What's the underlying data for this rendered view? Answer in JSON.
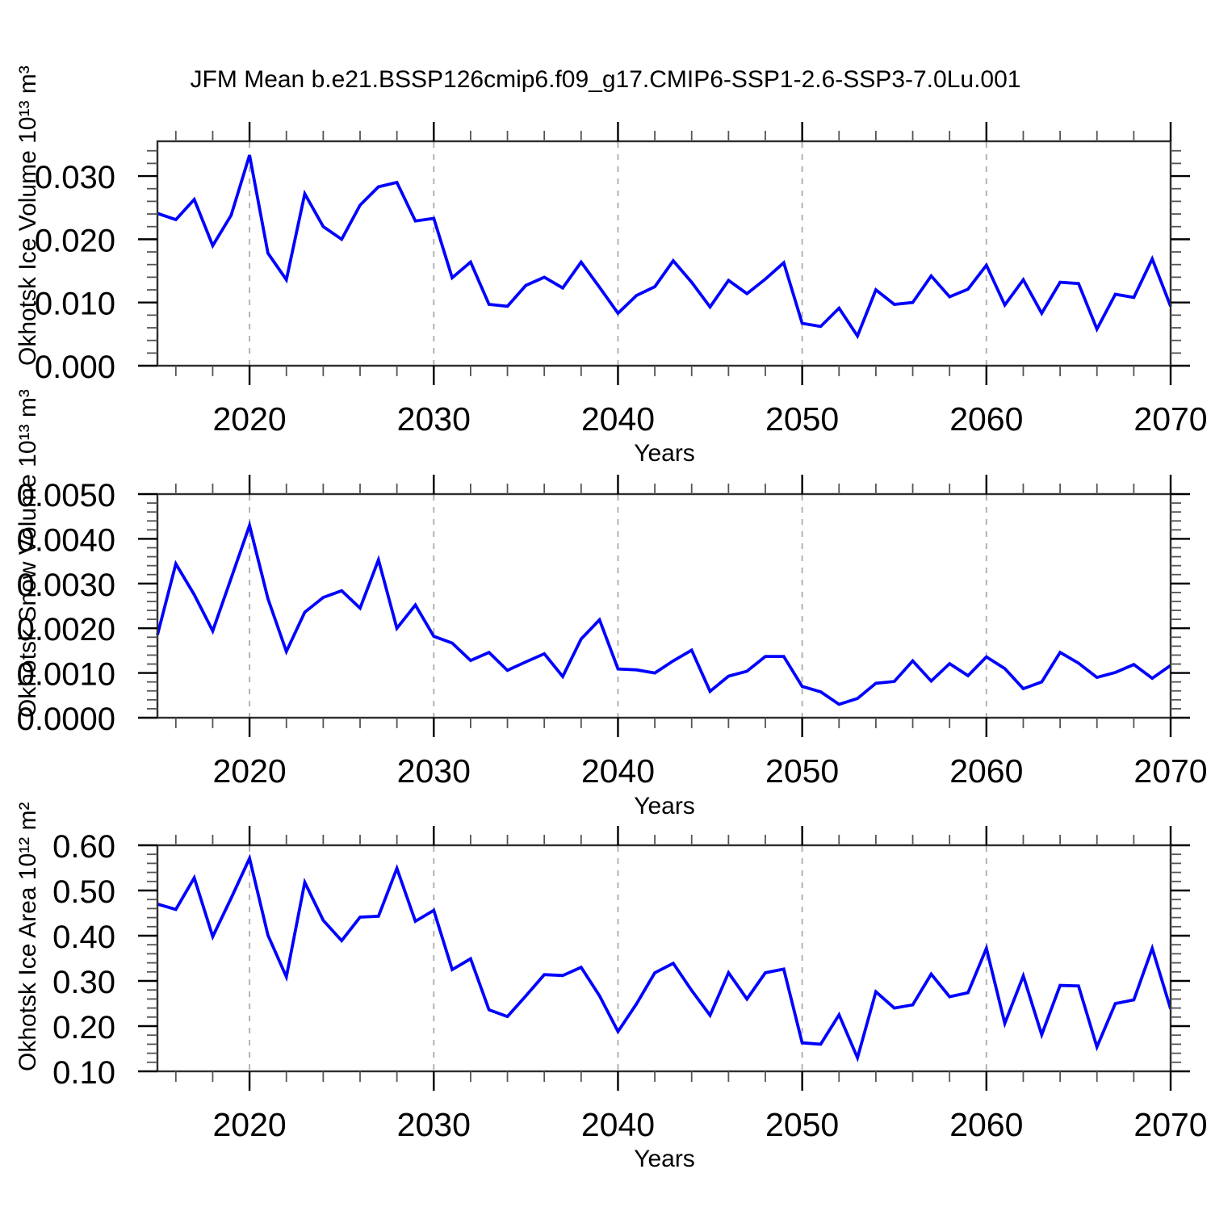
{
  "title": "JFM Mean b.e21.BSSP126cmip6.f09_g17.CMIP6-SSP1-2.6-SSP3-7.0Lu.001",
  "x_axis": {
    "label": "Years",
    "tick_labels": [
      "2020",
      "2030",
      "2040",
      "2050",
      "2060",
      "2070"
    ],
    "tick_values": [
      2020,
      2030,
      2040,
      2050,
      2060,
      2070
    ],
    "minor_step": 2,
    "gridline_years": [
      2020,
      2030,
      2040,
      2050,
      2060
    ],
    "xlim": [
      2015,
      2070
    ]
  },
  "style": {
    "line_color": "#0000fe",
    "grid_color": "#b3b3b3",
    "axis_color": "#2e2e2e",
    "minor_tick_color": "#555555",
    "text_color": "#000000",
    "background": "#ffffff"
  },
  "chart_data": [
    {
      "type": "line",
      "name": "Okhotsk Ice Volume",
      "ylabel": "Okhotsk Ice Volume 10¹³ m³",
      "xlabel": "Years",
      "ylim": [
        0,
        0.0355
      ],
      "ytick_values": [
        0.0,
        0.01,
        0.02,
        0.03
      ],
      "ytick_labels": [
        "0.000",
        "0.010",
        "0.020",
        "0.030"
      ],
      "yminor_step": 0.002,
      "grid": "vertical-dashed",
      "legend": "none",
      "x": [
        2015,
        2016,
        2017,
        2018,
        2019,
        2020,
        2021,
        2022,
        2023,
        2024,
        2025,
        2026,
        2027,
        2028,
        2029,
        2030,
        2031,
        2032,
        2033,
        2034,
        2035,
        2036,
        2037,
        2038,
        2039,
        2040,
        2041,
        2042,
        2043,
        2044,
        2045,
        2046,
        2047,
        2048,
        2049,
        2050,
        2051,
        2052,
        2053,
        2054,
        2055,
        2056,
        2057,
        2058,
        2059,
        2060,
        2061,
        2062,
        2063,
        2064,
        2065,
        2066,
        2067,
        2068,
        2069,
        2070
      ],
      "values": [
        0.0241,
        0.0231,
        0.0263,
        0.019,
        0.0238,
        0.0333,
        0.0178,
        0.0136,
        0.0272,
        0.022,
        0.02,
        0.0254,
        0.0283,
        0.029,
        0.0229,
        0.0233,
        0.0139,
        0.0164,
        0.0097,
        0.0094,
        0.0127,
        0.014,
        0.0123,
        0.0164,
        0.0124,
        0.0083,
        0.0111,
        0.0125,
        0.0166,
        0.0132,
        0.0093,
        0.0135,
        0.0114,
        0.0137,
        0.0163,
        0.0067,
        0.0062,
        0.0091,
        0.0047,
        0.012,
        0.0097,
        0.01,
        0.0142,
        0.0109,
        0.0121,
        0.0159,
        0.0096,
        0.0136,
        0.0083,
        0.0132,
        0.013,
        0.0058,
        0.0113,
        0.0108,
        0.0169,
        0.0094
      ]
    },
    {
      "type": "line",
      "name": "Okhotsk Snow Volume",
      "ylabel": "Okhotsk Snow Volume 10¹³ m³",
      "xlabel": "Years",
      "ylim": [
        0,
        0.005
      ],
      "ytick_values": [
        0.0,
        0.001,
        0.002,
        0.003,
        0.004,
        0.005
      ],
      "ytick_labels": [
        "0.0000",
        "0.0010",
        "0.0020",
        "0.0030",
        "0.0040",
        "0.0050"
      ],
      "yminor_step": 0.0002,
      "grid": "vertical-dashed",
      "legend": "none",
      "x": [
        2015,
        2016,
        2017,
        2018,
        2019,
        2020,
        2021,
        2022,
        2023,
        2024,
        2025,
        2026,
        2027,
        2028,
        2029,
        2030,
        2031,
        2032,
        2033,
        2034,
        2035,
        2036,
        2037,
        2038,
        2039,
        2040,
        2041,
        2042,
        2043,
        2044,
        2045,
        2046,
        2047,
        2048,
        2049,
        2050,
        2051,
        2052,
        2053,
        2054,
        2055,
        2056,
        2057,
        2058,
        2059,
        2060,
        2061,
        2062,
        2063,
        2064,
        2065,
        2066,
        2067,
        2068,
        2069,
        2070
      ],
      "values": [
        0.00185,
        0.00344,
        0.00275,
        0.00194,
        0.00312,
        0.0043,
        0.00266,
        0.00148,
        0.00236,
        0.00269,
        0.00284,
        0.00245,
        0.00353,
        0.002,
        0.00252,
        0.00182,
        0.00167,
        0.00128,
        0.00146,
        0.00106,
        0.00125,
        0.00143,
        0.00092,
        0.00176,
        0.00219,
        0.00109,
        0.00107,
        0.001,
        0.00127,
        0.00151,
        0.00059,
        0.00093,
        0.00104,
        0.00137,
        0.00137,
        0.0007,
        0.00058,
        0.0003,
        0.00043,
        0.00077,
        0.00081,
        0.00127,
        0.00082,
        0.00121,
        0.00094,
        0.00136,
        0.0011,
        0.00065,
        0.0008,
        0.00146,
        0.00122,
        0.0009,
        0.00101,
        0.00119,
        0.00088,
        0.00117
      ]
    },
    {
      "type": "line",
      "name": "Okhotsk Ice Area",
      "ylabel": "Okhotsk Ice Area 10¹² m²",
      "xlabel": "Years",
      "ylim": [
        0.1,
        0.6
      ],
      "ytick_values": [
        0.1,
        0.2,
        0.3,
        0.4,
        0.5,
        0.6
      ],
      "ytick_labels": [
        "0.10",
        "0.20",
        "0.30",
        "0.40",
        "0.50",
        "0.60"
      ],
      "yminor_step": 0.02,
      "grid": "vertical-dashed",
      "legend": "none",
      "x": [
        2015,
        2016,
        2017,
        2018,
        2019,
        2020,
        2021,
        2022,
        2023,
        2024,
        2025,
        2026,
        2027,
        2028,
        2029,
        2030,
        2031,
        2032,
        2033,
        2034,
        2035,
        2036,
        2037,
        2038,
        2039,
        2040,
        2041,
        2042,
        2043,
        2044,
        2045,
        2046,
        2047,
        2048,
        2049,
        2050,
        2051,
        2052,
        2053,
        2054,
        2055,
        2056,
        2057,
        2058,
        2059,
        2060,
        2061,
        2062,
        2063,
        2064,
        2065,
        2066,
        2067,
        2068,
        2069,
        2070
      ],
      "values": [
        0.47,
        0.458,
        0.528,
        0.398,
        0.483,
        0.571,
        0.401,
        0.309,
        0.518,
        0.434,
        0.389,
        0.441,
        0.443,
        0.549,
        0.432,
        0.456,
        0.325,
        0.349,
        0.236,
        0.221,
        0.267,
        0.314,
        0.312,
        0.33,
        0.267,
        0.188,
        0.249,
        0.318,
        0.339,
        0.279,
        0.224,
        0.318,
        0.26,
        0.318,
        0.326,
        0.163,
        0.16,
        0.225,
        0.13,
        0.276,
        0.24,
        0.247,
        0.315,
        0.265,
        0.274,
        0.372,
        0.206,
        0.311,
        0.181,
        0.29,
        0.289,
        0.154,
        0.25,
        0.258,
        0.372,
        0.238
      ]
    }
  ]
}
